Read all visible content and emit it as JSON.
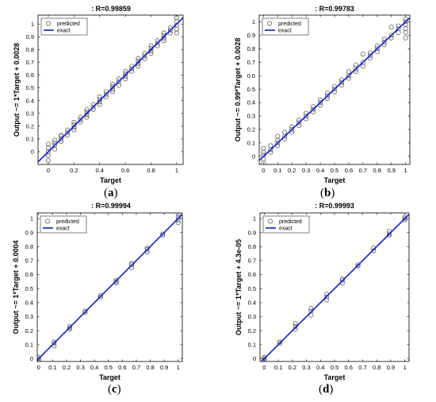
{
  "chart_data": [
    {
      "panel": "(a)",
      "panel_letter": "a",
      "type": "scatter",
      "title": ": R=0.99859",
      "xlabel": "Target",
      "ylabel": "Output ~= 1*Target + 0.0028",
      "xlim": [
        -0.08,
        1.05
      ],
      "ylim": [
        -0.1,
        1.07
      ],
      "xticks": [
        0,
        0.2,
        0.4,
        0.6,
        0.8,
        1
      ],
      "xtick_labels": [
        "0",
        "0.2",
        "0.4",
        "0.6",
        "0.8",
        "1"
      ],
      "yticks": [
        0,
        0.1,
        0.2,
        0.3,
        0.4,
        0.5,
        0.6,
        0.7,
        0.8,
        0.9,
        1
      ],
      "ytick_labels": [
        "0",
        "0.1",
        "0.2",
        "0.3",
        "0.4",
        "0.5",
        "0.6",
        "0.7",
        "0.8",
        "0.9",
        "1"
      ],
      "legend": [
        "predicted",
        "exact"
      ],
      "legend_position": "top-left",
      "fit": {
        "slope": 1,
        "intercept": 0.0028
      },
      "series": [
        {
          "name": "predicted",
          "x": [
            0,
            0,
            0,
            0,
            0,
            0.05,
            0.05,
            0.05,
            0.05,
            0.1,
            0.1,
            0.1,
            0.1,
            0.15,
            0.15,
            0.15,
            0.2,
            0.2,
            0.2,
            0.2,
            0.25,
            0.25,
            0.25,
            0.3,
            0.3,
            0.3,
            0.3,
            0.35,
            0.35,
            0.35,
            0.4,
            0.4,
            0.4,
            0.4,
            0.45,
            0.45,
            0.45,
            0.5,
            0.5,
            0.5,
            0.5,
            0.55,
            0.55,
            0.55,
            0.6,
            0.6,
            0.6,
            0.6,
            0.65,
            0.65,
            0.65,
            0.7,
            0.7,
            0.7,
            0.7,
            0.75,
            0.75,
            0.75,
            0.8,
            0.8,
            0.8,
            0.8,
            0.85,
            0.85,
            0.85,
            0.9,
            0.9,
            0.9,
            0.9,
            0.95,
            0.95,
            0.95,
            1,
            1,
            1,
            1,
            1
          ],
          "y": [
            -0.07,
            -0.03,
            0.0,
            0.03,
            0.06,
            0.02,
            0.05,
            0.07,
            0.09,
            0.08,
            0.1,
            0.12,
            0.13,
            0.13,
            0.15,
            0.17,
            0.17,
            0.19,
            0.21,
            0.23,
            0.23,
            0.25,
            0.27,
            0.27,
            0.29,
            0.31,
            0.33,
            0.33,
            0.35,
            0.37,
            0.37,
            0.39,
            0.41,
            0.43,
            0.43,
            0.45,
            0.47,
            0.47,
            0.49,
            0.51,
            0.53,
            0.52,
            0.55,
            0.57,
            0.57,
            0.59,
            0.61,
            0.63,
            0.63,
            0.65,
            0.67,
            0.67,
            0.69,
            0.71,
            0.73,
            0.73,
            0.75,
            0.77,
            0.77,
            0.79,
            0.81,
            0.83,
            0.83,
            0.85,
            0.87,
            0.87,
            0.89,
            0.91,
            0.93,
            0.93,
            0.95,
            0.97,
            0.93,
            0.96,
            0.99,
            1.02,
            1.05
          ]
        }
      ]
    },
    {
      "panel": "(b)",
      "panel_letter": "b",
      "type": "scatter",
      "title": ": R=0.99783",
      "xlabel": "Target",
      "ylabel": "Output ~= 0.99*Target + 0.0028",
      "xlim": [
        -0.03,
        1.03
      ],
      "ylim": [
        -0.06,
        1.05
      ],
      "xticks": [
        0,
        0.1,
        0.2,
        0.3,
        0.4,
        0.5,
        0.6,
        0.7,
        0.8,
        0.9,
        1
      ],
      "xtick_labels": [
        "0",
        "0.1",
        "0.2",
        "0.3",
        "0.4",
        "0.5",
        "0.6",
        "0.7",
        "0.8",
        "0.9",
        "1"
      ],
      "yticks": [
        0,
        0.1,
        0.2,
        0.3,
        0.4,
        0.5,
        0.6,
        0.7,
        0.8,
        0.9,
        1
      ],
      "ytick_labels": [
        "0",
        "0.1",
        "0.2",
        "0.3",
        "0.4",
        "0.5",
        "0.6",
        "0.7",
        "0.8",
        "0.9",
        "1"
      ],
      "legend": [
        "predicted",
        "exact"
      ],
      "legend_position": "top-left",
      "fit": {
        "slope": 0.99,
        "intercept": 0.0028
      },
      "series": [
        {
          "name": "predicted",
          "x": [
            0,
            0,
            0,
            0,
            0,
            0.05,
            0.05,
            0.05,
            0.1,
            0.1,
            0.1,
            0.1,
            0.15,
            0.15,
            0.15,
            0.2,
            0.2,
            0.2,
            0.25,
            0.25,
            0.25,
            0.3,
            0.3,
            0.3,
            0.35,
            0.35,
            0.35,
            0.4,
            0.4,
            0.4,
            0.45,
            0.45,
            0.45,
            0.5,
            0.5,
            0.5,
            0.55,
            0.55,
            0.55,
            0.6,
            0.6,
            0.6,
            0.65,
            0.65,
            0.65,
            0.7,
            0.7,
            0.7,
            0.75,
            0.75,
            0.75,
            0.8,
            0.8,
            0.8,
            0.85,
            0.85,
            0.85,
            0.9,
            0.9,
            0.9,
            0.95,
            0.95,
            0.95,
            1,
            1,
            1,
            1,
            1,
            1
          ],
          "y": [
            -0.05,
            -0.02,
            0.01,
            0.03,
            0.06,
            0.03,
            0.05,
            0.08,
            0.08,
            0.1,
            0.12,
            0.15,
            0.13,
            0.15,
            0.18,
            0.18,
            0.2,
            0.22,
            0.23,
            0.25,
            0.27,
            0.28,
            0.3,
            0.32,
            0.33,
            0.35,
            0.37,
            0.38,
            0.4,
            0.42,
            0.43,
            0.45,
            0.47,
            0.48,
            0.5,
            0.52,
            0.53,
            0.55,
            0.57,
            0.58,
            0.6,
            0.63,
            0.63,
            0.65,
            0.68,
            0.67,
            0.7,
            0.76,
            0.73,
            0.75,
            0.77,
            0.78,
            0.8,
            0.82,
            0.83,
            0.85,
            0.87,
            0.88,
            0.9,
            0.96,
            0.92,
            0.95,
            0.97,
            0.88,
            0.92,
            0.95,
            0.98,
            1.0,
            1.02
          ]
        }
      ]
    },
    {
      "panel": "(c)",
      "panel_letter": "c",
      "type": "scatter",
      "title": ": R=0.99994",
      "xlabel": "Target",
      "ylabel": "Output ~= 1*Target + 0.0004",
      "xlim": [
        -0.01,
        1.03
      ],
      "ylim": [
        -0.02,
        1.04
      ],
      "xticks": [
        0,
        0.1,
        0.2,
        0.3,
        0.4,
        0.5,
        0.6,
        0.7,
        0.8,
        0.9,
        1
      ],
      "xtick_labels": [
        "0",
        "0.1",
        "0.2",
        "0.3",
        "0.4",
        "0.5",
        "0.6",
        "0.7",
        "0.8",
        "0.9",
        "1"
      ],
      "yticks": [
        0,
        0.1,
        0.2,
        0.3,
        0.4,
        0.5,
        0.6,
        0.7,
        0.8,
        0.9,
        1
      ],
      "ytick_labels": [
        "0",
        "0.1",
        "0.2",
        "0.3",
        "0.4",
        "0.5",
        "0.6",
        "0.7",
        "0.8",
        "0.9",
        "1"
      ],
      "legend": [
        "predicted",
        "exact"
      ],
      "legend_position": "top-left",
      "fit": {
        "slope": 1,
        "intercept": 0.0004
      },
      "series": [
        {
          "name": "predicted",
          "x": [
            0,
            0,
            0,
            0.111,
            0.111,
            0.111,
            0.222,
            0.222,
            0.222,
            0.333,
            0.333,
            0.444,
            0.444,
            0.556,
            0.556,
            0.556,
            0.667,
            0.667,
            0.667,
            0.778,
            0.778,
            0.778,
            0.889,
            0.889,
            1,
            1,
            1,
            1
          ],
          "y": [
            -0.01,
            0.0,
            0.01,
            0.09,
            0.11,
            0.12,
            0.21,
            0.22,
            0.23,
            0.33,
            0.34,
            0.44,
            0.45,
            0.54,
            0.55,
            0.56,
            0.65,
            0.67,
            0.68,
            0.76,
            0.78,
            0.79,
            0.88,
            0.89,
            0.97,
            0.99,
            1.01,
            1.03
          ]
        }
      ]
    },
    {
      "panel": "(d)",
      "panel_letter": "d",
      "type": "scatter",
      "title": ": R=0.99993",
      "xlabel": "Target",
      "ylabel": "Output ~= 1*Target + 4.3e-05",
      "xlim": [
        -0.03,
        1.03
      ],
      "ylim": [
        -0.02,
        1.04
      ],
      "xticks": [
        0,
        0.1,
        0.2,
        0.3,
        0.4,
        0.5,
        0.6,
        0.7,
        0.8,
        0.9,
        1
      ],
      "xtick_labels": [
        "0",
        "0.1",
        "0.2",
        "0.3",
        "0.4",
        "0.5",
        "0.6",
        "0.7",
        "0.8",
        "0.9",
        "1"
      ],
      "yticks": [
        0,
        0.1,
        0.2,
        0.3,
        0.4,
        0.5,
        0.6,
        0.7,
        0.8,
        0.9,
        1
      ],
      "ytick_labels": [
        "0",
        "0.1",
        "0.2",
        "0.3",
        "0.4",
        "0.5",
        "0.6",
        "0.7",
        "0.8",
        "0.9",
        "1"
      ],
      "legend": [
        "predicted",
        "exact"
      ],
      "legend_position": "top-left",
      "fit": {
        "slope": 1,
        "intercept": 4.3e-05
      },
      "series": [
        {
          "name": "predicted",
          "x": [
            0,
            0,
            0,
            0.111,
            0.111,
            0.222,
            0.222,
            0.222,
            0.333,
            0.333,
            0.333,
            0.444,
            0.444,
            0.444,
            0.556,
            0.556,
            0.556,
            0.667,
            0.667,
            0.778,
            0.778,
            0.889,
            0.889,
            0.889,
            1,
            1,
            1
          ],
          "y": [
            -0.01,
            0.0,
            0.01,
            0.11,
            0.12,
            0.21,
            0.23,
            0.25,
            0.31,
            0.34,
            0.36,
            0.42,
            0.44,
            0.46,
            0.54,
            0.56,
            0.57,
            0.66,
            0.67,
            0.77,
            0.79,
            0.88,
            0.89,
            0.91,
            0.99,
            1.0,
            1.01
          ]
        }
      ]
    }
  ],
  "colors": {
    "exact_line": "#0a1fd6",
    "marker": "#4a4a4a",
    "axis": "#000000",
    "background": "#ffffff"
  }
}
